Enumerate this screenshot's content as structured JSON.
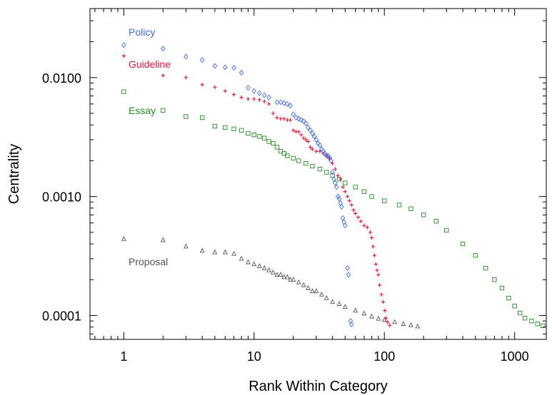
{
  "chart_data": {
    "type": "scatter",
    "title": "",
    "xlabel": "Rank Within Category",
    "ylabel": "Centrality",
    "xscale": "log",
    "yscale": "log",
    "xlim": [
      0.55,
      1750
    ],
    "ylim": [
      6.3e-05,
      0.038
    ],
    "x_ticks": [
      1,
      10,
      100,
      1000
    ],
    "x_tick_labels": [
      "1",
      "10",
      "100",
      "1000"
    ],
    "y_ticks": [
      0.0001,
      0.001,
      0.01
    ],
    "y_tick_labels": [
      "0.0001",
      "0.0010",
      "0.0100"
    ],
    "grid": false,
    "legend_placement": "inline-labels",
    "series": [
      {
        "name": "Policy",
        "marker": "diamond",
        "color": "#4169e1",
        "points": [
          [
            1,
            0.0187
          ],
          [
            2,
            0.0175
          ],
          [
            3,
            0.015
          ],
          [
            4,
            0.014
          ],
          [
            5,
            0.0125
          ],
          [
            6,
            0.0122
          ],
          [
            7,
            0.0121
          ],
          [
            8,
            0.011
          ],
          [
            9,
            0.0082
          ],
          [
            10,
            0.0077
          ],
          [
            11,
            0.0074
          ],
          [
            12,
            0.0071
          ],
          [
            13,
            0.0068
          ],
          [
            15,
            0.0062
          ],
          [
            16,
            0.0062
          ],
          [
            17,
            0.0061
          ],
          [
            18,
            0.006
          ],
          [
            19,
            0.0058
          ],
          [
            20,
            0.0049
          ],
          [
            21,
            0.0046
          ],
          [
            22,
            0.0045
          ],
          [
            23,
            0.0044
          ],
          [
            24,
            0.0043
          ],
          [
            25,
            0.0041
          ],
          [
            26,
            0.0038
          ],
          [
            27,
            0.0036
          ],
          [
            28,
            0.0034
          ],
          [
            29,
            0.0032
          ],
          [
            30,
            0.003
          ],
          [
            31,
            0.0028
          ],
          [
            32,
            0.0027
          ],
          [
            33,
            0.0025
          ],
          [
            34,
            0.0024
          ],
          [
            35,
            0.0023
          ],
          [
            36,
            0.0022
          ],
          [
            37,
            0.0022
          ],
          [
            38,
            0.0021
          ],
          [
            39,
            0.002
          ],
          [
            40,
            0.0016
          ],
          [
            41,
            0.0014
          ],
          [
            42,
            0.0013
          ],
          [
            43,
            0.0012
          ],
          [
            44,
            0.001
          ],
          [
            45,
            0.00096
          ],
          [
            46,
            0.00088
          ],
          [
            47,
            0.00082
          ],
          [
            48,
            0.00066
          ],
          [
            49,
            0.00061
          ],
          [
            50,
            0.00057
          ],
          [
            52,
            0.00025
          ],
          [
            53,
            0.00022
          ],
          [
            55,
            9e-05
          ],
          [
            56,
            8.4e-05
          ]
        ]
      },
      {
        "name": "Guideline",
        "marker": "plus",
        "color": "#dc143c",
        "points": [
          [
            1,
            0.0152
          ],
          [
            2,
            0.0104
          ],
          [
            3,
            0.01
          ],
          [
            4,
            0.0087
          ],
          [
            5,
            0.0083
          ],
          [
            6,
            0.0077
          ],
          [
            7,
            0.0072
          ],
          [
            8,
            0.0068
          ],
          [
            9,
            0.0066
          ],
          [
            10,
            0.0066
          ],
          [
            11,
            0.0065
          ],
          [
            12,
            0.0063
          ],
          [
            13,
            0.006
          ],
          [
            14,
            0.005
          ],
          [
            15,
            0.0046
          ],
          [
            16,
            0.0045
          ],
          [
            17,
            0.0045
          ],
          [
            18,
            0.0044
          ],
          [
            19,
            0.0044
          ],
          [
            20,
            0.0036
          ],
          [
            21,
            0.0035
          ],
          [
            22,
            0.0035
          ],
          [
            23,
            0.0033
          ],
          [
            24,
            0.0031
          ],
          [
            25,
            0.003
          ],
          [
            26,
            0.0029
          ],
          [
            27,
            0.0026
          ],
          [
            28,
            0.0025
          ],
          [
            30,
            0.0024
          ],
          [
            32,
            0.0024
          ],
          [
            34,
            0.0023
          ],
          [
            36,
            0.0022
          ],
          [
            38,
            0.0021
          ],
          [
            40,
            0.0019
          ],
          [
            42,
            0.0017
          ],
          [
            44,
            0.0015
          ],
          [
            46,
            0.0014
          ],
          [
            48,
            0.0012
          ],
          [
            50,
            0.0011
          ],
          [
            52,
            0.001
          ],
          [
            54,
            0.00092
          ],
          [
            56,
            0.00085
          ],
          [
            58,
            0.00077
          ],
          [
            60,
            0.00072
          ],
          [
            63,
            0.00067
          ],
          [
            66,
            0.00062
          ],
          [
            70,
            0.00057
          ],
          [
            74,
            0.00055
          ],
          [
            78,
            0.0005
          ],
          [
            80,
            0.00045
          ],
          [
            82,
            0.00038
          ],
          [
            84,
            0.00032
          ],
          [
            86,
            0.00027
          ],
          [
            88,
            0.00024
          ],
          [
            90,
            0.00022
          ],
          [
            92,
            0.00018
          ],
          [
            95,
            0.00015
          ],
          [
            98,
            0.00013
          ],
          [
            101,
            0.00011
          ],
          [
            103,
            9.5e-05
          ],
          [
            106,
            8.8e-05
          ],
          [
            110,
            8.3e-05
          ]
        ]
      },
      {
        "name": "Essay",
        "marker": "square",
        "color": "#228b22",
        "points": [
          [
            1,
            0.0076
          ],
          [
            2,
            0.0053
          ],
          [
            3,
            0.0047
          ],
          [
            4,
            0.0046
          ],
          [
            5,
            0.0039
          ],
          [
            6,
            0.0038
          ],
          [
            7,
            0.0037
          ],
          [
            8,
            0.0036
          ],
          [
            9,
            0.0034
          ],
          [
            10,
            0.0033
          ],
          [
            11,
            0.0032
          ],
          [
            12,
            0.0031
          ],
          [
            13,
            0.0029
          ],
          [
            14,
            0.0028
          ],
          [
            15,
            0.0026
          ],
          [
            16,
            0.0024
          ],
          [
            17,
            0.0023
          ],
          [
            18,
            0.0022
          ],
          [
            20,
            0.0021
          ],
          [
            22,
            0.002
          ],
          [
            25,
            0.0019
          ],
          [
            28,
            0.0018
          ],
          [
            32,
            0.0017
          ],
          [
            36,
            0.0016
          ],
          [
            40,
            0.0015
          ],
          [
            45,
            0.0014
          ],
          [
            50,
            0.0013
          ],
          [
            60,
            0.0012
          ],
          [
            70,
            0.0011
          ],
          [
            80,
            0.001
          ],
          [
            100,
            0.00092
          ],
          [
            130,
            0.00085
          ],
          [
            160,
            0.00079
          ],
          [
            200,
            0.0007
          ],
          [
            250,
            0.00062
          ],
          [
            300,
            0.00052
          ],
          [
            400,
            0.0004
          ],
          [
            500,
            0.00032
          ],
          [
            600,
            0.00025
          ],
          [
            700,
            0.0002
          ],
          [
            800,
            0.00017
          ],
          [
            900,
            0.00014
          ],
          [
            1000,
            0.00012
          ],
          [
            1100,
            0.000105
          ],
          [
            1200,
            9.5e-05
          ],
          [
            1350,
            9e-05
          ],
          [
            1500,
            8.5e-05
          ],
          [
            1650,
            8.2e-05
          ]
        ]
      },
      {
        "name": "Proposal",
        "marker": "triangle",
        "color": "#555555",
        "points": [
          [
            1,
            0.00044
          ],
          [
            2,
            0.00043
          ],
          [
            3,
            0.00038
          ],
          [
            4,
            0.00035
          ],
          [
            5,
            0.00034
          ],
          [
            6,
            0.00034
          ],
          [
            7,
            0.00033
          ],
          [
            8,
            0.0003
          ],
          [
            9,
            0.00028
          ],
          [
            10,
            0.00027
          ],
          [
            11,
            0.00026
          ],
          [
            12,
            0.00025
          ],
          [
            13,
            0.00024
          ],
          [
            14,
            0.00023
          ],
          [
            15,
            0.00022
          ],
          [
            16,
            0.00022
          ],
          [
            17,
            0.00021
          ],
          [
            18,
            0.00021
          ],
          [
            19,
            0.0002
          ],
          [
            20,
            0.0002
          ],
          [
            22,
            0.00019
          ],
          [
            24,
            0.00018
          ],
          [
            26,
            0.00017
          ],
          [
            28,
            0.00016
          ],
          [
            30,
            0.00016
          ],
          [
            33,
            0.00015
          ],
          [
            36,
            0.00014
          ],
          [
            40,
            0.00013
          ],
          [
            45,
            0.000125
          ],
          [
            50,
            0.000118
          ],
          [
            60,
            0.00011
          ],
          [
            70,
            0.000104
          ],
          [
            80,
            9.8e-05
          ],
          [
            90,
            9.4e-05
          ],
          [
            100,
            9.2e-05
          ],
          [
            120,
            8.8e-05
          ],
          [
            140,
            8.5e-05
          ],
          [
            160,
            8.3e-05
          ],
          [
            180,
            8.1e-05
          ]
        ]
      }
    ],
    "annotations": [
      {
        "text": "Policy",
        "series": "Policy",
        "color": "#4169e1"
      },
      {
        "text": "Guideline",
        "series": "Guideline",
        "color": "#dc143c"
      },
      {
        "text": "Essay",
        "series": "Essay",
        "color": "#228b22"
      },
      {
        "text": "Proposal",
        "series": "Proposal",
        "color": "#555555"
      }
    ]
  }
}
